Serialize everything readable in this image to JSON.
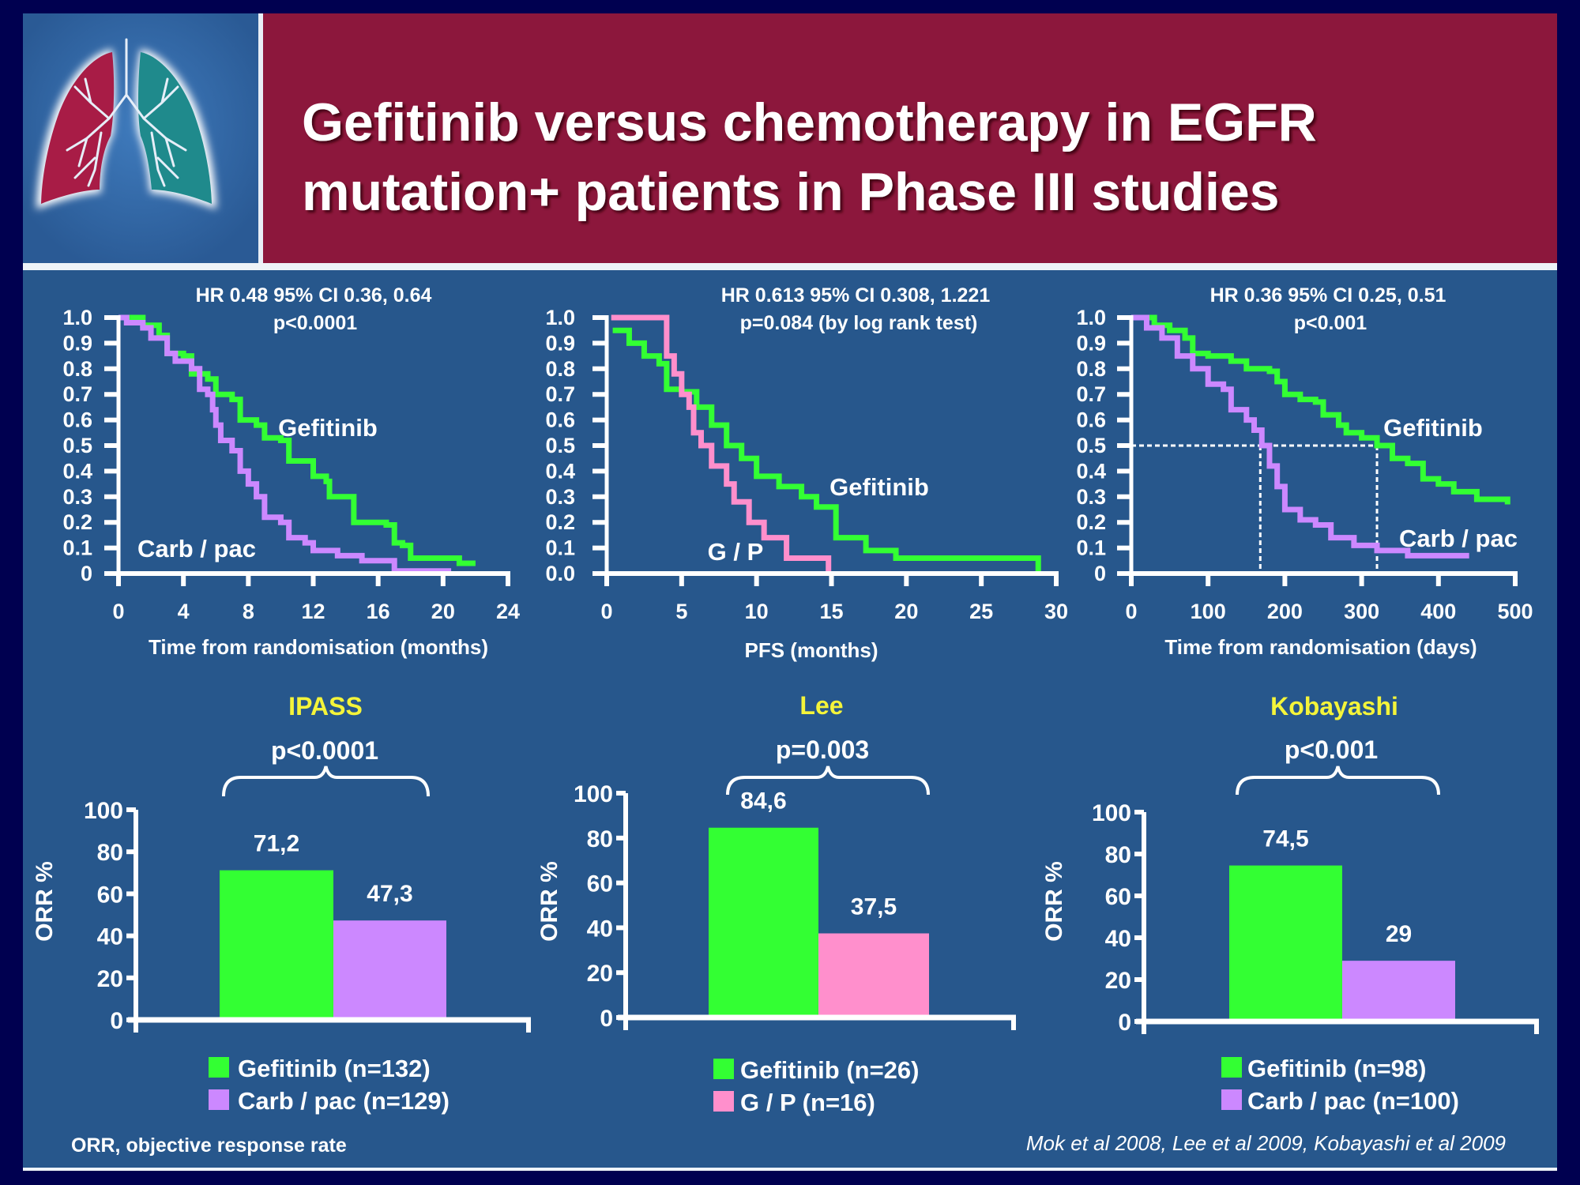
{
  "slide": {
    "title_line1": "Gefitinib versus chemotherapy in EGFR",
    "title_line2": "mutation+ patients in Phase III studies",
    "footnote": "ORR, objective response rate",
    "citation": "Mok et al 2008, Lee et al 2009, Kobayashi et al 2009",
    "logo": "lungs-icon"
  },
  "colors": {
    "background": "#000050",
    "panel": "#27578c",
    "header": "#8c173c",
    "gefitinib": "#33ff33",
    "carb_pac": "#cc88ff",
    "g_p": "#ff8fcc",
    "study_title": "#f4f43a"
  },
  "chart_data": [
    {
      "type": "line",
      "subtype": "kaplan-meier",
      "annotation_line1": "HR 0.48 95% CI 0.36, 0.64",
      "annotation_line2": "p<0.0001",
      "xlabel": "Time from randomisation (months)",
      "ylabel": "",
      "xlim": [
        0,
        24
      ],
      "ylim": [
        0,
        1.0
      ],
      "xticks": [
        "0",
        "4",
        "8",
        "12",
        "16",
        "20",
        "24"
      ],
      "yticks": [
        "0",
        "0.1",
        "0.2",
        "0.3",
        "0.4",
        "0.5",
        "0.6",
        "0.7",
        "0.8",
        "0.9",
        "1.0"
      ],
      "grid": false,
      "series": [
        {
          "name": "Gefitinib",
          "label": "Gefitinib",
          "color": "#33ff33",
          "x": [
            0,
            1.5,
            2.5,
            3,
            4,
            4.5,
            5.5,
            6,
            7,
            7.5,
            8.5,
            9,
            10,
            10.5,
            11.5,
            12,
            12.8,
            13,
            14,
            14.5,
            16.5,
            17,
            17.5,
            18,
            21,
            22
          ],
          "y": [
            1,
            0.97,
            0.93,
            0.86,
            0.85,
            0.78,
            0.76,
            0.7,
            0.68,
            0.6,
            0.58,
            0.53,
            0.52,
            0.44,
            0.44,
            0.38,
            0.36,
            0.3,
            0.3,
            0.2,
            0.19,
            0.12,
            0.11,
            0.06,
            0.04,
            0.04
          ]
        },
        {
          "name": "Carb / pac",
          "label": "Carb / pac",
          "color": "#cc88ff",
          "x": [
            0,
            0.5,
            1.5,
            2,
            3,
            3.5,
            4.5,
            5,
            5.5,
            5.8,
            6,
            6.3,
            7,
            7.5,
            8,
            8.5,
            9,
            10,
            10.5,
            11.5,
            12,
            13.5,
            15,
            17,
            20.5
          ],
          "y": [
            1,
            0.98,
            0.96,
            0.92,
            0.86,
            0.83,
            0.8,
            0.72,
            0.7,
            0.64,
            0.58,
            0.52,
            0.48,
            0.4,
            0.35,
            0.3,
            0.22,
            0.2,
            0.14,
            0.12,
            0.09,
            0.07,
            0.05,
            0.01,
            0.01
          ]
        }
      ]
    },
    {
      "type": "line",
      "subtype": "kaplan-meier",
      "annotation_line1": "HR 0.613 95% CI 0.308, 1.221",
      "annotation_line2": "p=0.084 (by log rank test)",
      "xlabel": "PFS (months)",
      "ylabel": "",
      "xlim": [
        0,
        30
      ],
      "ylim": [
        0,
        1.0
      ],
      "xticks": [
        "0",
        "5",
        "10",
        "15",
        "20",
        "25",
        "30"
      ],
      "yticks": [
        "0.0",
        "0.1",
        "0.2",
        "0.3",
        "0.4",
        "0.5",
        "0.6",
        "0.7",
        "0.8",
        "0.9",
        "1.0"
      ],
      "grid": false,
      "series": [
        {
          "name": "Gefitinib",
          "label": "Gefitinib",
          "color": "#33ff33",
          "x": [
            0.4,
            1.5,
            2.5,
            3.5,
            4,
            5,
            6,
            7,
            8,
            9,
            10,
            11.5,
            13,
            14,
            15.3,
            17.3,
            19.3,
            28.8,
            28.8
          ],
          "y": [
            0.95,
            0.9,
            0.85,
            0.82,
            0.72,
            0.71,
            0.65,
            0.58,
            0.5,
            0.45,
            0.38,
            0.34,
            0.3,
            0.26,
            0.14,
            0.09,
            0.06,
            0.06,
            0
          ]
        },
        {
          "name": "G / P",
          "label": "G / P",
          "color": "#ff8fcc",
          "x": [
            0.3,
            3.7,
            4,
            4.5,
            5,
            5.5,
            5.8,
            6.3,
            7,
            8,
            8.5,
            9.5,
            10.5,
            12,
            14.8,
            14.8
          ],
          "y": [
            1,
            1,
            0.85,
            0.78,
            0.7,
            0.65,
            0.55,
            0.5,
            0.42,
            0.35,
            0.28,
            0.2,
            0.14,
            0.06,
            0.06,
            0
          ]
        }
      ]
    },
    {
      "type": "line",
      "subtype": "kaplan-meier",
      "annotation_line1": "HR 0.36 95% CI 0.25, 0.51",
      "annotation_line2": "p<0.001",
      "xlabel": "Time from randomisation (days)",
      "ylabel": "",
      "xlim": [
        0,
        500
      ],
      "ylim": [
        0,
        1.0
      ],
      "xticks": [
        "0",
        "100",
        "200",
        "300",
        "400",
        "500"
      ],
      "yticks": [
        "0",
        "0.1",
        "0.2",
        "0.3",
        "0.4",
        "0.5",
        "0.6",
        "0.7",
        "0.8",
        "0.9",
        "1.0"
      ],
      "grid": false,
      "median_lines": {
        "y": 0.5,
        "x": [
          168,
          320
        ]
      },
      "series": [
        {
          "name": "Gefitinib",
          "label": "Gefitinib",
          "color": "#33ff33",
          "x": [
            0,
            30,
            50,
            70,
            80,
            100,
            130,
            150,
            180,
            190,
            200,
            220,
            240,
            250,
            270,
            280,
            300,
            320,
            340,
            360,
            380,
            400,
            420,
            450,
            490
          ],
          "y": [
            1,
            0.97,
            0.95,
            0.92,
            0.86,
            0.85,
            0.83,
            0.8,
            0.79,
            0.75,
            0.7,
            0.68,
            0.67,
            0.62,
            0.58,
            0.55,
            0.53,
            0.5,
            0.45,
            0.43,
            0.37,
            0.35,
            0.32,
            0.29,
            0.27
          ]
        },
        {
          "name": "Carb / pac",
          "label": "Carb / pac",
          "color": "#cc88ff",
          "x": [
            0,
            20,
            40,
            60,
            80,
            100,
            120,
            130,
            150,
            160,
            170,
            180,
            190,
            200,
            220,
            240,
            260,
            290,
            320,
            360,
            440
          ],
          "y": [
            1,
            0.96,
            0.92,
            0.85,
            0.8,
            0.74,
            0.72,
            0.64,
            0.6,
            0.56,
            0.5,
            0.42,
            0.34,
            0.25,
            0.21,
            0.19,
            0.14,
            0.11,
            0.09,
            0.07,
            0.07
          ]
        }
      ]
    },
    {
      "type": "bar",
      "title": "IPASS",
      "pvalue": "p<0.0001",
      "ylabel": "ORR %",
      "ylim": [
        0,
        100
      ],
      "yticks": [
        "0",
        "20",
        "40",
        "60",
        "80",
        "100"
      ],
      "categories": [
        "Gefitinib (n=132)",
        "Carb / pac (n=129)"
      ],
      "values": [
        71.2,
        47.3
      ],
      "value_labels": [
        "71,2",
        "47,3"
      ],
      "colors": [
        "#33ff33",
        "#cc88ff"
      ]
    },
    {
      "type": "bar",
      "title": "Lee",
      "pvalue": "p=0.003",
      "ylabel": "ORR %",
      "ylim": [
        0,
        100
      ],
      "yticks": [
        "0",
        "20",
        "40",
        "60",
        "80",
        "100"
      ],
      "categories": [
        "Gefitinib (n=26)",
        "G / P (n=16)"
      ],
      "values": [
        84.6,
        37.5
      ],
      "value_labels": [
        "84,6",
        "37,5"
      ],
      "colors": [
        "#33ff33",
        "#ff8fcc"
      ]
    },
    {
      "type": "bar",
      "title": "Kobayashi",
      "pvalue": "p<0.001",
      "ylabel": "ORR %",
      "ylim": [
        0,
        100
      ],
      "yticks": [
        "0",
        "20",
        "40",
        "60",
        "80",
        "100"
      ],
      "categories": [
        "Gefitinib (n=98)",
        "Carb / pac (n=100)"
      ],
      "values": [
        74.5,
        29
      ],
      "value_labels": [
        "74,5",
        "29"
      ],
      "colors": [
        "#33ff33",
        "#cc88ff"
      ]
    }
  ]
}
